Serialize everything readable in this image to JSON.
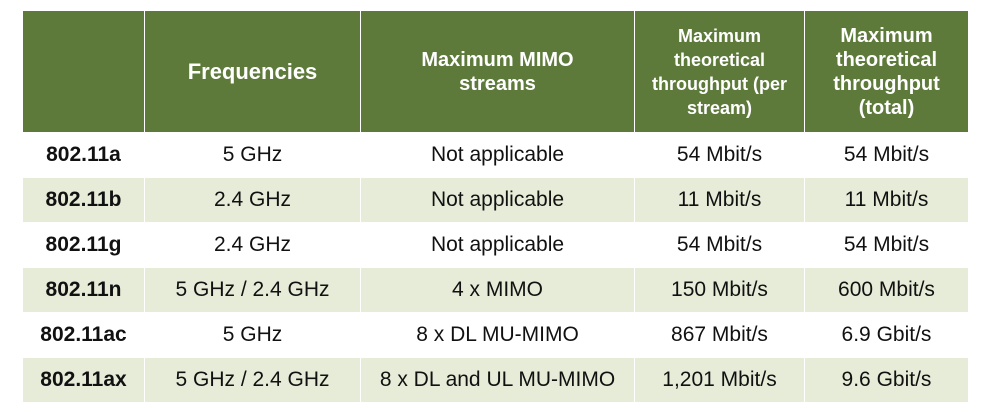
{
  "table": {
    "headers": [
      "",
      "Frequencies",
      "Maximum MIMO streams",
      "Maximum theoretical throughput (per stream)",
      "Maximum theoretical throughput (total)"
    ],
    "rows": [
      [
        "802.11a",
        "5 GHz",
        "Not applicable",
        "54 Mbit/s",
        "54 Mbit/s"
      ],
      [
        "802.11b",
        "2.4 GHz",
        "Not applicable",
        "11 Mbit/s",
        "11 Mbit/s"
      ],
      [
        "802.11g",
        "2.4 GHz",
        "Not applicable",
        "54 Mbit/s",
        "54 Mbit/s"
      ],
      [
        "802.11n",
        "5 GHz / 2.4 GHz",
        "4 x MIMO",
        "150 Mbit/s",
        "600 Mbit/s"
      ],
      [
        "802.11ac",
        "5 GHz",
        "8 x DL MU-MIMO",
        "867 Mbit/s",
        "6.9 Gbit/s"
      ],
      [
        "802.11ax",
        "5 GHz / 2.4 GHz",
        "8 x DL and UL MU-MIMO",
        "1,201 Mbit/s",
        "9.6 Gbit/s"
      ]
    ]
  },
  "colors": {
    "header_bg": "#5e7a3a",
    "header_text": "#ffffff",
    "row_alt_bg": "#e6ecd8",
    "row_bg": "#ffffff"
  }
}
